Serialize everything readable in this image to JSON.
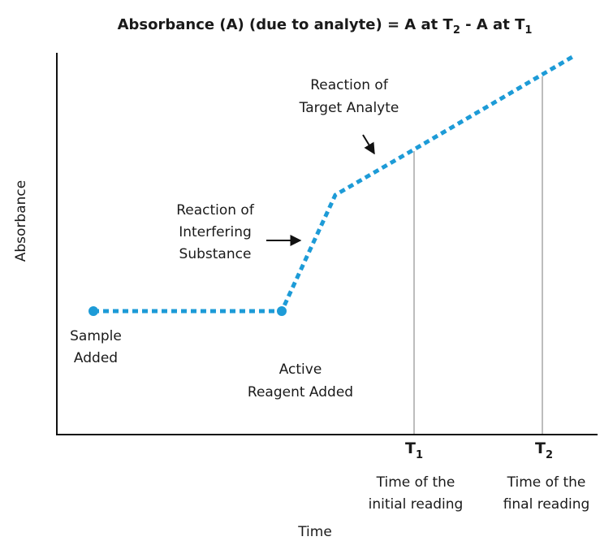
{
  "title": [
    "Absorbance (A) (due to analyte) = A at T",
    "2",
    " - A at T",
    "1"
  ],
  "y_axis_label": "Absorbance",
  "x_axis_label": "Time",
  "annotations": {
    "target": [
      "Reaction of",
      "Target Analyte"
    ],
    "interfering": [
      "Reaction of",
      "Interfering",
      "Substance"
    ],
    "sample": [
      "Sample",
      "Added"
    ],
    "reagent": [
      "Active",
      "Reagent Added"
    ]
  },
  "readings": [
    {
      "symbol": "T",
      "index": "1",
      "lines": [
        "Time of the",
        "initial reading"
      ]
    },
    {
      "symbol": "T",
      "index": "2",
      "lines": [
        "Time of the",
        "final reading"
      ]
    }
  ]
}
